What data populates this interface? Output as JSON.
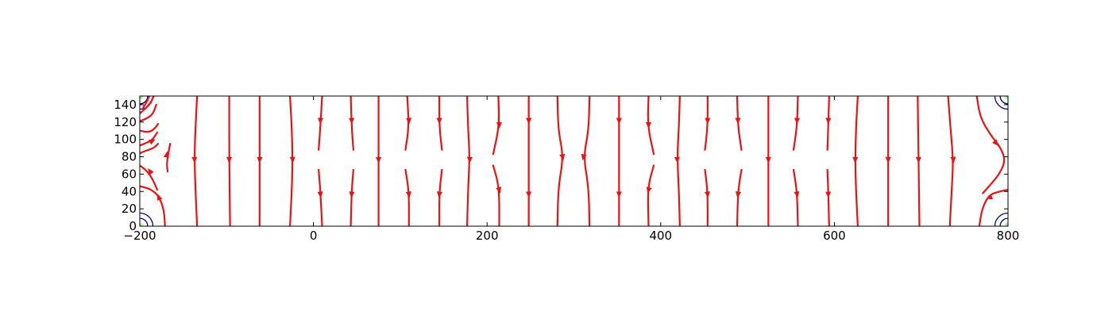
{
  "chart_data": {
    "type": "streamplot",
    "title": "",
    "xlabel": "",
    "ylabel": "",
    "xlim": [
      -200,
      800
    ],
    "ylim": [
      0,
      150
    ],
    "xticks": [
      -200,
      0,
      200,
      400,
      600,
      800
    ],
    "xtick_labels": [
      "−200",
      "0",
      "200",
      "400",
      "600",
      "800"
    ],
    "yticks": [
      0,
      20,
      40,
      60,
      80,
      100,
      120,
      140
    ],
    "ytick_labels": [
      "0",
      "20",
      "40",
      "60",
      "80",
      "100",
      "120",
      "140"
    ],
    "grid": false,
    "colors": {
      "stream": "#ee1111",
      "contour_outer": "#000080",
      "contour_inner": "#7fff7f"
    },
    "contour_centers": [
      [
        -200,
        0
      ],
      [
        -200,
        150
      ],
      [
        800,
        0
      ],
      [
        800,
        150
      ]
    ],
    "contour_radii": [
      15,
      9,
      3
    ],
    "streamlines": [
      {
        "points": [
          [
            -171,
            0
          ],
          [
            -172,
            18
          ],
          [
            -178,
            35
          ],
          [
            -188,
            43
          ],
          [
            -200,
            46
          ]
        ],
        "arrows": [
          [
            -178,
            33
          ]
        ]
      },
      {
        "points": [
          [
            -180,
            42
          ],
          [
            -185,
            54
          ],
          [
            -192,
            64
          ],
          [
            -200,
            70
          ]
        ],
        "arrows": [
          [
            -188,
            63
          ]
        ]
      },
      {
        "points": [
          [
            -168,
            63
          ],
          [
            -169,
            72
          ],
          [
            -167,
            85
          ],
          [
            -165,
            95
          ]
        ],
        "arrows": [
          [
            -169,
            82
          ]
        ]
      },
      {
        "points": [
          [
            -200,
            84
          ],
          [
            -193,
            87
          ],
          [
            -184,
            90
          ],
          [
            -179,
            95
          ]
        ],
        "arrows": []
      },
      {
        "points": [
          [
            -200,
            110
          ],
          [
            -190,
            108
          ],
          [
            -183,
            112
          ],
          [
            -179,
            118
          ]
        ],
        "arrows": []
      },
      {
        "points": [
          [
            -200,
            93
          ],
          [
            -192,
            96
          ],
          [
            -185,
            100
          ],
          [
            -180,
            108
          ]
        ],
        "arrows": [
          [
            -186,
            98
          ]
        ]
      },
      {
        "points": [
          [
            -200,
            121
          ],
          [
            -192,
            124
          ],
          [
            -185,
            129
          ],
          [
            -181,
            140
          ]
        ],
        "arrows": []
      },
      {
        "points": [
          [
            -200,
            130
          ],
          [
            -193,
            136
          ],
          [
            -187,
            143
          ],
          [
            -184,
            150
          ]
        ],
        "arrows": []
      },
      {
        "points": [
          [
            -196,
            137
          ],
          [
            -192,
            143
          ],
          [
            -189,
            150
          ]
        ],
        "arrows": []
      },
      {
        "points": [
          [
            -134,
            150
          ],
          [
            -136,
            110
          ],
          [
            -137,
            80
          ],
          [
            -136,
            45
          ],
          [
            -134,
            0
          ]
        ],
        "arrows": [
          [
            -137,
            77
          ]
        ]
      },
      {
        "points": [
          [
            -97,
            150
          ],
          [
            -97,
            75
          ],
          [
            -96,
            0
          ]
        ],
        "arrows": [
          [
            -97,
            77
          ]
        ]
      },
      {
        "points": [
          [
            -62,
            150
          ],
          [
            -62,
            75
          ],
          [
            -62,
            0
          ]
        ],
        "arrows": [
          [
            -62,
            77
          ]
        ]
      },
      {
        "points": [
          [
            -27,
            150
          ],
          [
            -25,
            115
          ],
          [
            -24,
            75
          ],
          [
            -25,
            40
          ],
          [
            -27,
            0
          ]
        ],
        "arrows": [
          [
            -24,
            77
          ]
        ]
      },
      {
        "points": [
          [
            10,
            150
          ],
          [
            8,
            115
          ],
          [
            6,
            88
          ]
        ],
        "arrows": [
          [
            8,
            122
          ]
        ]
      },
      {
        "points": [
          [
            6,
            65
          ],
          [
            8,
            40
          ],
          [
            10,
            0
          ]
        ],
        "arrows": [
          [
            8,
            37
          ]
        ]
      },
      {
        "points": [
          [
            43,
            150
          ],
          [
            44,
            115
          ],
          [
            46,
            88
          ]
        ],
        "arrows": [
          [
            44,
            122
          ]
        ]
      },
      {
        "points": [
          [
            46,
            65
          ],
          [
            44,
            40
          ],
          [
            43,
            0
          ]
        ],
        "arrows": [
          [
            44,
            37
          ]
        ]
      },
      {
        "points": [
          [
            75,
            150
          ],
          [
            75,
            75
          ],
          [
            75,
            0
          ]
        ],
        "arrows": [
          [
            75,
            77
          ]
        ]
      },
      {
        "points": [
          [
            108,
            150
          ],
          [
            110,
            115
          ],
          [
            106,
            88
          ]
        ],
        "arrows": [
          [
            110,
            122
          ]
        ]
      },
      {
        "points": [
          [
            106,
            65
          ],
          [
            110,
            40
          ],
          [
            110,
            0
          ]
        ],
        "arrows": [
          [
            110,
            37
          ]
        ]
      },
      {
        "points": [
          [
            145,
            150
          ],
          [
            145,
            115
          ],
          [
            148,
            88
          ]
        ],
        "arrows": [
          [
            145,
            122
          ]
        ]
      },
      {
        "points": [
          [
            148,
            65
          ],
          [
            145,
            40
          ],
          [
            145,
            0
          ]
        ],
        "arrows": [
          [
            145,
            37
          ]
        ]
      },
      {
        "points": [
          [
            177,
            150
          ],
          [
            178,
            115
          ],
          [
            180,
            80
          ],
          [
            178,
            40
          ],
          [
            177,
            0
          ]
        ],
        "arrows": [
          [
            180,
            77
          ]
        ]
      },
      {
        "points": [
          [
            213,
            150
          ],
          [
            214,
            115
          ],
          [
            207,
            83
          ]
        ],
        "arrows": [
          [
            214,
            117
          ]
        ]
      },
      {
        "points": [
          [
            207,
            70
          ],
          [
            214,
            45
          ],
          [
            214,
            0
          ]
        ],
        "arrows": [
          [
            214,
            42
          ]
        ]
      },
      {
        "points": [
          [
            248,
            150
          ],
          [
            248,
            75
          ],
          [
            248,
            0
          ]
        ],
        "arrows": [
          [
            248,
            122
          ],
          [
            248,
            37
          ]
        ]
      },
      {
        "points": [
          [
            281,
            150
          ],
          [
            282,
            110
          ],
          [
            288,
            80
          ],
          [
            282,
            45
          ],
          [
            281,
            0
          ]
        ],
        "arrows": [
          [
            287,
            80
          ]
        ]
      },
      {
        "points": [
          [
            318,
            150
          ],
          [
            317,
            110
          ],
          [
            311,
            80
          ],
          [
            317,
            45
          ],
          [
            318,
            0
          ]
        ],
        "arrows": [
          [
            311,
            80
          ]
        ]
      },
      {
        "points": [
          [
            352,
            150
          ],
          [
            352,
            75
          ],
          [
            352,
            0
          ]
        ],
        "arrows": [
          [
            352,
            122
          ],
          [
            352,
            37
          ]
        ]
      },
      {
        "points": [
          [
            386,
            150
          ],
          [
            385,
            115
          ],
          [
            392,
            83
          ]
        ],
        "arrows": [
          [
            386,
            117
          ]
        ]
      },
      {
        "points": [
          [
            392,
            70
          ],
          [
            385,
            45
          ],
          [
            386,
            0
          ]
        ],
        "arrows": [
          [
            386,
            42
          ]
        ]
      },
      {
        "points": [
          [
            422,
            150
          ],
          [
            421,
            115
          ],
          [
            419,
            80
          ],
          [
            421,
            40
          ],
          [
            422,
            0
          ]
        ],
        "arrows": [
          [
            419,
            77
          ]
        ]
      },
      {
        "points": [
          [
            454,
            150
          ],
          [
            454,
            115
          ],
          [
            451,
            88
          ]
        ],
        "arrows": [
          [
            454,
            122
          ]
        ]
      },
      {
        "points": [
          [
            451,
            65
          ],
          [
            454,
            40
          ],
          [
            454,
            0
          ]
        ],
        "arrows": [
          [
            454,
            37
          ]
        ]
      },
      {
        "points": [
          [
            488,
            150
          ],
          [
            489,
            115
          ],
          [
            493,
            88
          ]
        ],
        "arrows": [
          [
            489,
            122
          ]
        ]
      },
      {
        "points": [
          [
            493,
            65
          ],
          [
            489,
            40
          ],
          [
            488,
            0
          ]
        ],
        "arrows": [
          [
            489,
            37
          ]
        ]
      },
      {
        "points": [
          [
            524,
            150
          ],
          [
            524,
            75
          ],
          [
            524,
            0
          ]
        ],
        "arrows": [
          [
            524,
            77
          ]
        ]
      },
      {
        "points": [
          [
            558,
            150
          ],
          [
            557,
            115
          ],
          [
            553,
            88
          ]
        ],
        "arrows": [
          [
            557,
            122
          ]
        ]
      },
      {
        "points": [
          [
            553,
            65
          ],
          [
            557,
            40
          ],
          [
            558,
            0
          ]
        ],
        "arrows": [
          [
            557,
            37
          ]
        ]
      },
      {
        "points": [
          [
            594,
            150
          ],
          [
            593,
            115
          ],
          [
            592,
            88
          ]
        ],
        "arrows": [
          [
            593,
            122
          ]
        ]
      },
      {
        "points": [
          [
            592,
            65
          ],
          [
            593,
            40
          ],
          [
            594,
            0
          ]
        ],
        "arrows": [
          [
            593,
            37
          ]
        ]
      },
      {
        "points": [
          [
            627,
            150
          ],
          [
            625,
            115
          ],
          [
            624,
            75
          ],
          [
            625,
            40
          ],
          [
            627,
            0
          ]
        ],
        "arrows": [
          [
            624,
            77
          ]
        ]
      },
      {
        "points": [
          [
            662,
            150
          ],
          [
            662,
            75
          ],
          [
            662,
            0
          ]
        ],
        "arrows": [
          [
            662,
            77
          ]
        ]
      },
      {
        "points": [
          [
            696,
            150
          ],
          [
            697,
            75
          ],
          [
            698,
            0
          ]
        ],
        "arrows": [
          [
            697,
            77
          ]
        ]
      },
      {
        "points": [
          [
            731,
            150
          ],
          [
            734,
            110
          ],
          [
            737,
            75
          ],
          [
            735,
            40
          ],
          [
            733,
            0
          ]
        ],
        "arrows": [
          [
            737,
            77
          ]
        ]
      },
      {
        "points": [
          [
            764,
            150
          ],
          [
            768,
            125
          ],
          [
            780,
            105
          ],
          [
            792,
            90
          ],
          [
            797,
            75
          ],
          [
            790,
            60
          ],
          [
            780,
            48
          ],
          [
            771,
            38
          ]
        ],
        "arrows": [
          [
            786,
            96
          ]
        ]
      },
      {
        "points": [
          [
            800,
            42
          ],
          [
            790,
            40
          ],
          [
            778,
            36
          ],
          [
            770,
            20
          ],
          [
            767,
            0
          ]
        ],
        "arrows": [
          [
            779,
            33
          ]
        ]
      }
    ]
  }
}
